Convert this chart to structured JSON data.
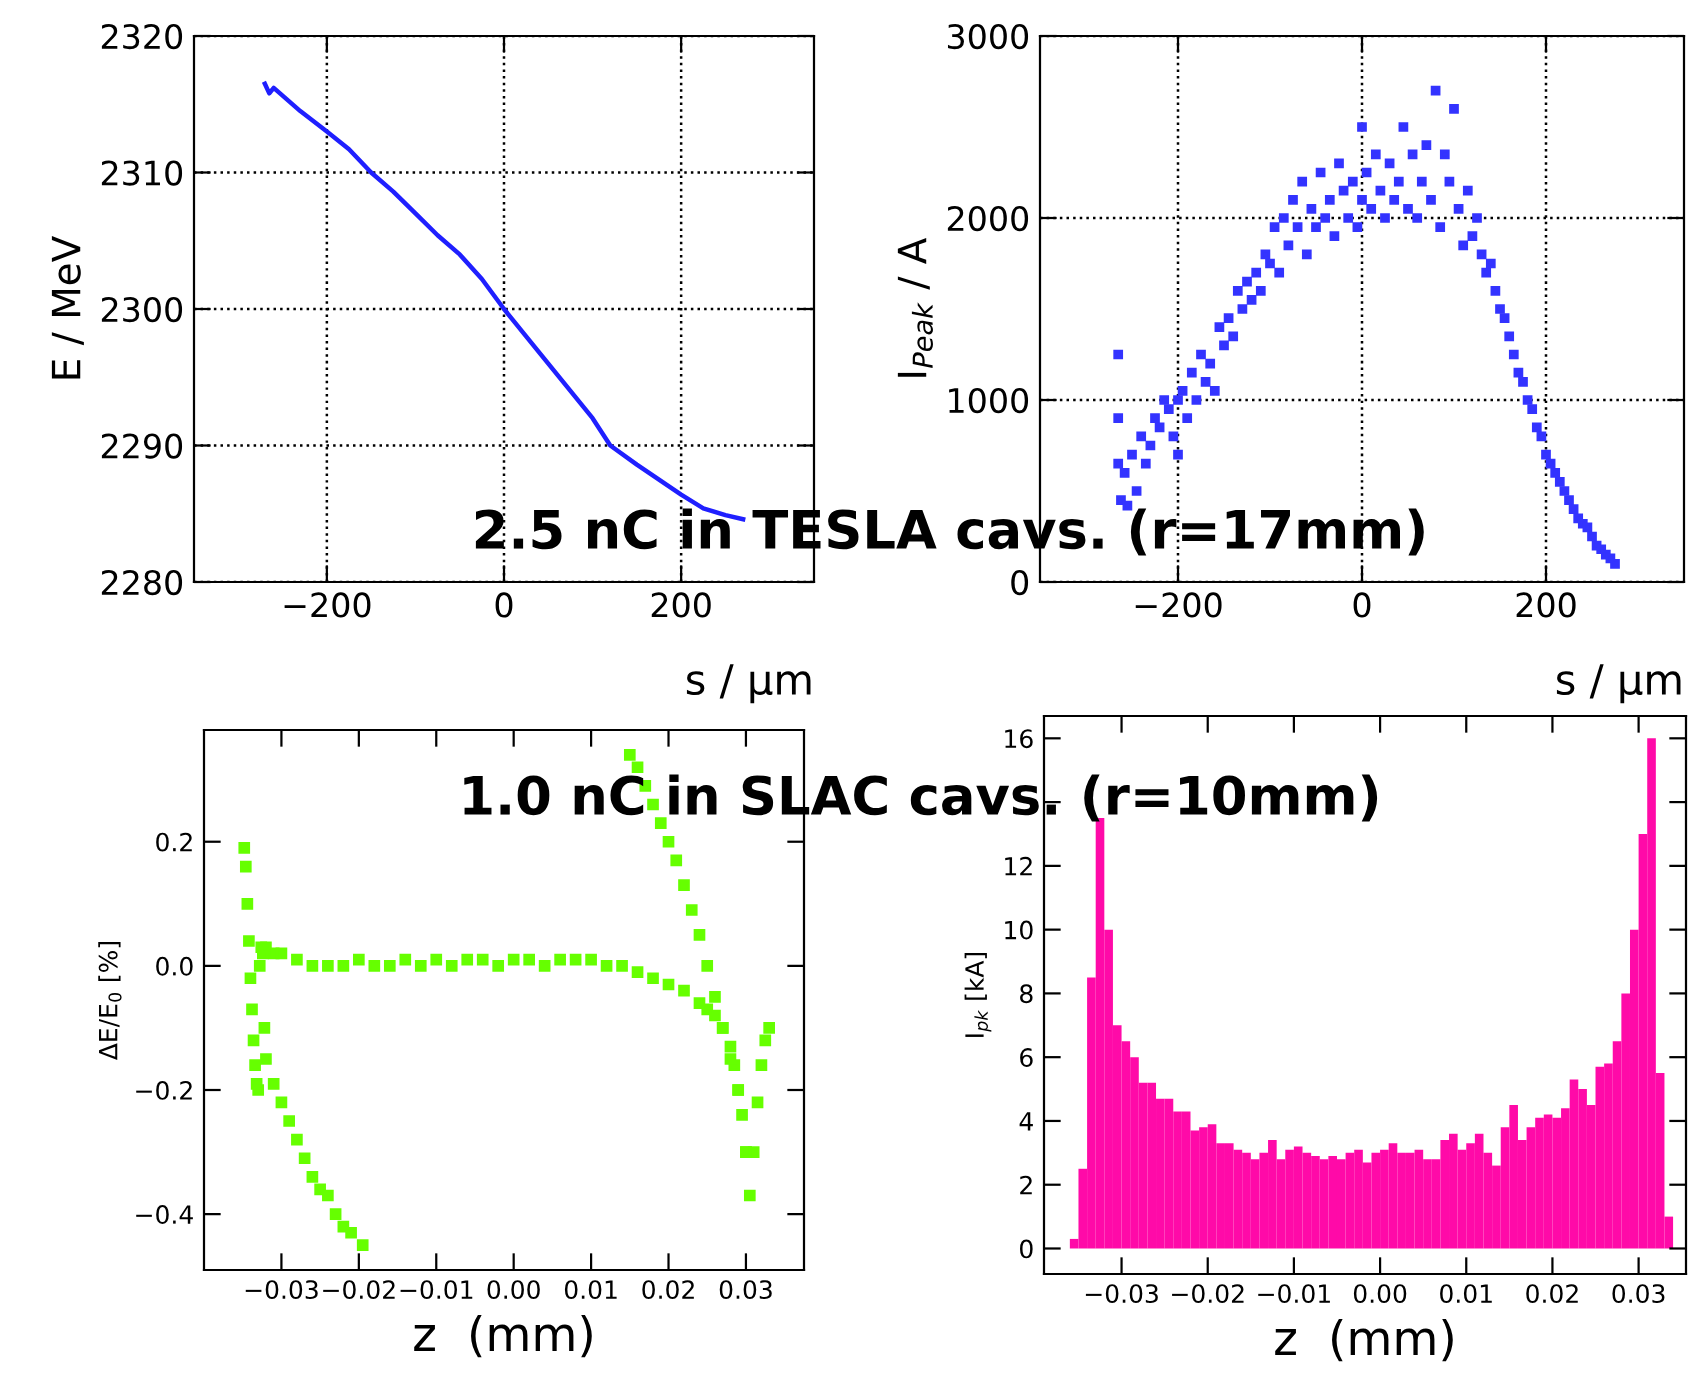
{
  "chart_data": [
    {
      "type": "line",
      "xlabel": "s / µm",
      "ylabel": "E / MeV",
      "xlim": [
        -350,
        350
      ],
      "ylim": [
        2280,
        2320
      ],
      "xticks": [
        {
          "value": -200,
          "label": "−200"
        },
        0,
        200
      ],
      "yticks": [
        2280,
        2290,
        2300,
        2310,
        2320
      ],
      "grid": true,
      "line_style": "solid",
      "annotations": [
        "2.5 nC in TESLA cavs. (r=17mm)"
      ],
      "series": [
        {
          "color": "#1f1fff",
          "x": [
            -270,
            -265,
            -260,
            -230,
            -200,
            -175,
            -150,
            -125,
            -100,
            -75,
            -50,
            -25,
            0,
            25,
            50,
            75,
            100,
            120,
            150,
            175,
            200,
            225,
            250,
            270
          ],
          "values": [
            2316.5,
            2315.8,
            2316.2,
            2314.5,
            2313,
            2311.7,
            2310,
            2308.6,
            2307,
            2305.4,
            2304,
            2302.2,
            2300,
            2298,
            2296,
            2294,
            2292,
            2290,
            2288.6,
            2287.5,
            2286.4,
            2285.4,
            2284.9,
            2284.6
          ]
        }
      ]
    },
    {
      "type": "scatter",
      "xlabel": "s / µm",
      "ylabel": "I$_{Peak}$ / A",
      "xlim": [
        -350,
        350
      ],
      "ylim": [
        0,
        3000
      ],
      "xticks": [
        {
          "value": -200,
          "label": "−200"
        },
        0,
        200
      ],
      "yticks": [
        0,
        1000,
        2000,
        3000
      ],
      "grid": true,
      "marker": "square",
      "series": [
        {
          "color": "#3333ff",
          "x": [
            -265,
            -265,
            -265,
            -262,
            -258,
            -255,
            -250,
            -245,
            -240,
            -235,
            -230,
            -225,
            -220,
            -215,
            -210,
            -205,
            -200,
            -200,
            -195,
            -190,
            -185,
            -180,
            -175,
            -170,
            -165,
            -160,
            -155,
            -150,
            -145,
            -140,
            -135,
            -130,
            -125,
            -120,
            -115,
            -110,
            -105,
            -100,
            -95,
            -90,
            -85,
            -80,
            -75,
            -70,
            -65,
            -60,
            -55,
            -50,
            -45,
            -40,
            -35,
            -30,
            -25,
            -20,
            -15,
            -10,
            -5,
            0,
            0,
            5,
            10,
            15,
            20,
            25,
            30,
            35,
            40,
            45,
            50,
            55,
            60,
            65,
            70,
            75,
            80,
            85,
            90,
            95,
            100,
            105,
            110,
            115,
            120,
            125,
            130,
            135,
            140,
            145,
            150,
            155,
            160,
            165,
            170,
            175,
            180,
            185,
            190,
            195,
            200,
            205,
            210,
            215,
            220,
            225,
            230,
            235,
            240,
            245,
            250,
            255,
            260,
            265,
            270,
            275
          ],
          "values": [
            1250,
            900,
            650,
            450,
            600,
            420,
            700,
            500,
            800,
            650,
            750,
            900,
            850,
            1000,
            950,
            800,
            1000,
            700,
            1050,
            900,
            1150,
            1000,
            1250,
            1100,
            1200,
            1050,
            1400,
            1300,
            1450,
            1350,
            1600,
            1500,
            1650,
            1550,
            1700,
            1600,
            1800,
            1750,
            1950,
            1700,
            2000,
            1850,
            2100,
            1950,
            2200,
            1800,
            2050,
            1950,
            2250,
            2000,
            2100,
            1900,
            2300,
            2150,
            2000,
            2200,
            1950,
            2500,
            2100,
            2250,
            2050,
            2350,
            2150,
            2000,
            2300,
            2100,
            2200,
            2500,
            2050,
            2350,
            2000,
            2200,
            2400,
            2100,
            2700,
            1950,
            2350,
            2200,
            2600,
            2050,
            1850,
            2150,
            1900,
            2000,
            1800,
            1700,
            1750,
            1600,
            1500,
            1450,
            1350,
            1250,
            1150,
            1100,
            1000,
            950,
            850,
            800,
            700,
            650,
            600,
            550,
            500,
            450,
            400,
            350,
            320,
            300,
            250,
            200,
            180,
            150,
            130,
            100
          ]
        }
      ]
    },
    {
      "type": "scatter",
      "xlabel": "z  (mm)",
      "ylabel": "ΔE/E$_{0}$ [%]",
      "xlim": [
        -0.04,
        0.0375
      ],
      "ylim": [
        -0.49,
        0.38
      ],
      "xticks": [
        {
          "value": -0.03,
          "label": "−0.03"
        },
        {
          "value": -0.02,
          "label": "−0.02"
        },
        {
          "value": -0.01,
          "label": "−0.01"
        },
        {
          "value": 0,
          "label": "0.00"
        },
        {
          "value": 0.01,
          "label": "0.01"
        },
        {
          "value": 0.02,
          "label": "0.02"
        },
        {
          "value": 0.03,
          "label": "0.03"
        }
      ],
      "yticks": [
        {
          "value": -0.4,
          "label": "−0.4"
        },
        {
          "value": -0.2,
          "label": "−0.2"
        },
        {
          "value": 0,
          "label": "0.0"
        },
        {
          "value": 0.2,
          "label": "0.2"
        }
      ],
      "grid": false,
      "marker": "square",
      "annotations": [
        "1.0 nC in SLAC cavs. (r=10mm)"
      ],
      "series": [
        {
          "color": "#66ff00",
          "x": [
            -0.0348,
            -0.0346,
            -0.0344,
            -0.0342,
            -0.034,
            -0.0338,
            -0.0336,
            -0.0334,
            -0.0332,
            -0.033,
            -0.0328,
            -0.0326,
            -0.0324,
            -0.0322,
            -0.032,
            -0.031,
            -0.03,
            -0.029,
            -0.028,
            -0.027,
            -0.026,
            -0.025,
            -0.024,
            -0.023,
            -0.022,
            -0.021,
            -0.0195,
            -0.032,
            -0.031,
            -0.03,
            -0.028,
            -0.026,
            -0.024,
            -0.022,
            -0.02,
            -0.018,
            -0.016,
            -0.014,
            -0.012,
            -0.01,
            -0.008,
            -0.006,
            -0.004,
            -0.002,
            0,
            0.002,
            0.004,
            0.006,
            0.008,
            0.01,
            0.012,
            0.014,
            0.016,
            0.018,
            0.02,
            0.022,
            0.024,
            0.025,
            0.026,
            0.027,
            0.028,
            0.0285,
            0.029,
            0.0295,
            0.03,
            0.0305,
            0.031,
            0.0315,
            0.032,
            0.0325,
            0.033,
            0.015,
            0.016,
            0.017,
            0.018,
            0.019,
            0.02,
            0.021,
            0.022,
            0.023,
            0.024,
            0.025,
            0.026,
            0.027,
            0.028,
            0.029,
            0.03
          ],
          "values": [
            0.19,
            0.16,
            0.1,
            0.04,
            -0.02,
            -0.07,
            -0.12,
            -0.16,
            -0.19,
            -0.2,
            0.0,
            0.03,
            0.02,
            -0.1,
            -0.15,
            -0.19,
            -0.22,
            -0.25,
            -0.28,
            -0.31,
            -0.34,
            -0.36,
            -0.37,
            -0.4,
            -0.42,
            -0.43,
            -0.45,
            0.03,
            0.02,
            0.02,
            0.01,
            0.0,
            0.0,
            0.0,
            0.01,
            0.0,
            0.0,
            0.01,
            0.0,
            0.01,
            0.0,
            0.01,
            0.01,
            0.0,
            0.01,
            0.01,
            0.0,
            0.01,
            0.01,
            0.01,
            0.0,
            0.0,
            -0.01,
            -0.02,
            -0.03,
            -0.04,
            -0.06,
            -0.07,
            -0.08,
            -0.1,
            -0.13,
            -0.16,
            -0.2,
            -0.24,
            -0.3,
            -0.37,
            -0.3,
            -0.22,
            -0.16,
            -0.12,
            -0.1,
            0.34,
            0.32,
            0.29,
            0.26,
            0.23,
            0.2,
            0.17,
            0.13,
            0.09,
            0.05,
            0.0,
            -0.05,
            -0.1,
            -0.15,
            -0.2,
            -0.3
          ]
        }
      ]
    },
    {
      "type": "histogram",
      "xlabel": "z  (mm)",
      "ylabel": "I$_{pk}$ [kA]",
      "xlim": [
        -0.039,
        0.0355
      ],
      "ylim": [
        -0.8,
        16.7
      ],
      "xticks": [
        {
          "value": -0.03,
          "label": "−0.03"
        },
        {
          "value": -0.02,
          "label": "−0.02"
        },
        {
          "value": -0.01,
          "label": "−0.01"
        },
        {
          "value": 0,
          "label": "0.00"
        },
        {
          "value": 0.01,
          "label": "0.01"
        },
        {
          "value": 0.02,
          "label": "0.02"
        },
        {
          "value": 0.03,
          "label": "0.03"
        }
      ],
      "yticks": [
        0,
        2,
        4,
        6,
        8,
        10,
        12,
        {
          "value": 14,
          "label": null
        },
        16
      ],
      "grid": false,
      "color": "#ff0aa8",
      "bins": [
        -0.036,
        -0.035,
        -0.034,
        -0.033,
        -0.032,
        -0.031,
        -0.03,
        -0.029,
        -0.028,
        -0.027,
        -0.026,
        -0.025,
        -0.024,
        -0.023,
        -0.022,
        -0.021,
        -0.02,
        -0.019,
        -0.018,
        -0.017,
        -0.016,
        -0.015,
        -0.014,
        -0.013,
        -0.012,
        -0.011,
        -0.01,
        -0.009,
        -0.008,
        -0.007,
        -0.006,
        -0.005,
        -0.004,
        -0.003,
        -0.002,
        -0.001,
        0,
        0.001,
        0.002,
        0.003,
        0.004,
        0.005,
        0.006,
        0.007,
        0.008,
        0.009,
        0.01,
        0.011,
        0.012,
        0.013,
        0.014,
        0.015,
        0.016,
        0.017,
        0.018,
        0.019,
        0.02,
        0.021,
        0.022,
        0.023,
        0.024,
        0.025,
        0.026,
        0.027,
        0.028,
        0.029,
        0.03,
        0.031,
        0.032,
        0.033,
        0.034
      ],
      "values": [
        0.3,
        2.5,
        8.5,
        13.5,
        10,
        7,
        6.5,
        6,
        5.2,
        5.2,
        4.7,
        4.7,
        4.3,
        4.3,
        3.7,
        3.8,
        3.9,
        3.3,
        3.3,
        3.1,
        3.0,
        2.8,
        3.0,
        3.4,
        2.8,
        3.1,
        3.2,
        3.0,
        2.9,
        2.8,
        2.9,
        2.8,
        3.0,
        3.1,
        2.7,
        3.0,
        3.1,
        3.3,
        3.0,
        3.0,
        3.1,
        2.8,
        2.8,
        3.4,
        3.6,
        3.1,
        3.3,
        3.6,
        3.0,
        2.6,
        3.8,
        4.5,
        3.4,
        3.8,
        4.1,
        4.2,
        4.1,
        4.4,
        5.3,
        5.0,
        4.5,
        5.7,
        5.8,
        6.5,
        8.0,
        10.0,
        13.0,
        16.0,
        5.5,
        1.0
      ]
    }
  ]
}
